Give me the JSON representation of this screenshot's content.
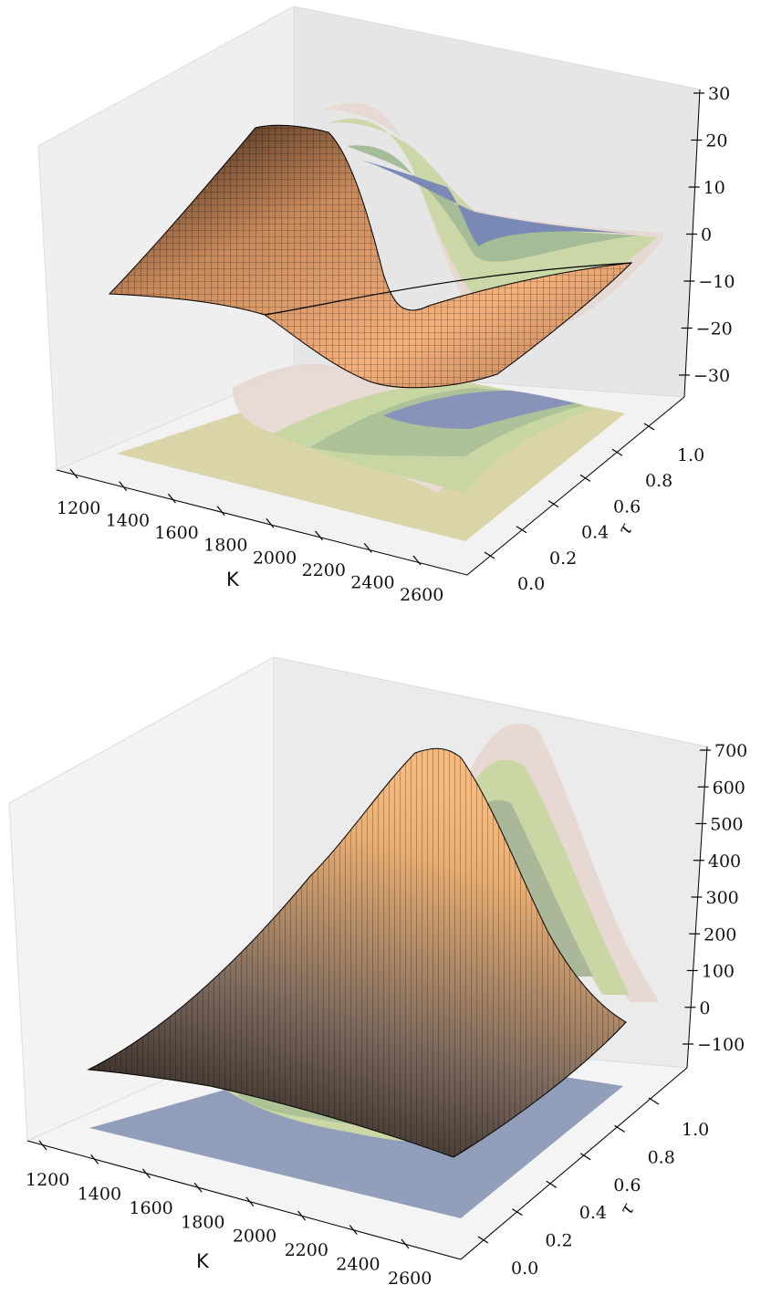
{
  "chart_data": [
    {
      "type": "surface3d",
      "title": "",
      "xlabel": "K",
      "ylabel": "τ",
      "zlabel": "",
      "x_ticks": [
        "1200",
        "1400",
        "1600",
        "1800",
        "2000",
        "2200",
        "2400",
        "2600"
      ],
      "y_ticks": [
        "0.0",
        "0.2",
        "0.4",
        "0.6",
        "0.8",
        "1.0"
      ],
      "z_ticks": [
        "30",
        "20",
        "10",
        "0",
        "−10",
        "−20",
        "−30"
      ],
      "xlim": [
        1100,
        2700
      ],
      "ylim": [
        0,
        1.1
      ],
      "zlim": [
        -35,
        32
      ],
      "surface": {
        "description_points": [
          {
            "K": 1150,
            "tau": 0.0,
            "value": 0
          },
          {
            "K": 1650,
            "tau": 1.0,
            "value": 30
          },
          {
            "K": 2100,
            "tau": 0.6,
            "value": -25
          },
          {
            "K": 2650,
            "tau": 1.0,
            "value": 0
          }
        ],
        "colormap": "copper"
      },
      "contour_projections": [
        "bottom (z)",
        "back (τ)"
      ]
    },
    {
      "type": "surface3d",
      "title": "",
      "xlabel": "K",
      "ylabel": "τ",
      "zlabel": "",
      "x_ticks": [
        "1200",
        "1400",
        "1600",
        "1800",
        "2000",
        "2200",
        "2400",
        "2600"
      ],
      "y_ticks": [
        "0.0",
        "0.2",
        "0.4",
        "0.6",
        "0.8",
        "1.0"
      ],
      "z_ticks": [
        "700",
        "600",
        "500",
        "400",
        "300",
        "200",
        "100",
        "0",
        "−100"
      ],
      "xlim": [
        1100,
        2700
      ],
      "ylim": [
        0,
        1.1
      ],
      "zlim": [
        -150,
        720
      ],
      "surface": {
        "description_points": [
          {
            "K": 1150,
            "tau": 0.0,
            "value": 0
          },
          {
            "K": 2000,
            "tau": 1.0,
            "value": 700
          },
          {
            "K": 2650,
            "tau": 1.0,
            "value": 0
          }
        ],
        "colormap": "copper"
      },
      "contour_projections": [
        "bottom (z)",
        "back (τ)"
      ]
    }
  ]
}
